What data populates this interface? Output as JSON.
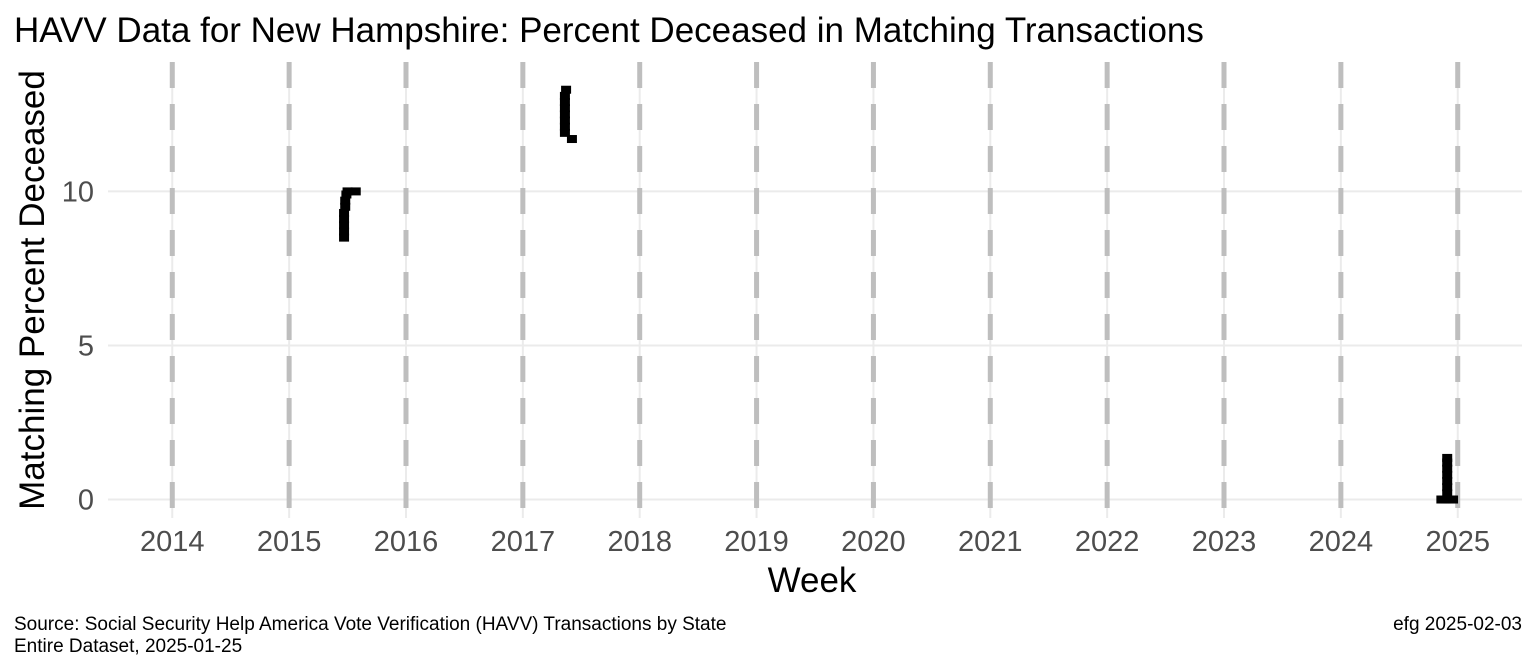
{
  "chart_data": {
    "type": "scatter",
    "title": "HAVV Data for New Hampshire:  Percent Deceased in Matching Transactions",
    "xlabel": "Week",
    "ylabel": "Matching Percent Deceased",
    "x_ticks": [
      "2014",
      "2015",
      "2016",
      "2017",
      "2018",
      "2019",
      "2020",
      "2021",
      "2022",
      "2023",
      "2024",
      "2025"
    ],
    "y_ticks": [
      0,
      5,
      10
    ],
    "xlim": [
      2013.45,
      2025.55
    ],
    "ylim": [
      -0.6,
      14.2
    ],
    "grid": true,
    "year_boundary_lines": "dashed",
    "series": [
      {
        "points": [
          {
            "x": 2015.47,
            "y": 8.5
          },
          {
            "x": 2015.47,
            "y": 8.7
          },
          {
            "x": 2015.47,
            "y": 8.9
          },
          {
            "x": 2015.47,
            "y": 9.1
          },
          {
            "x": 2015.47,
            "y": 9.3
          },
          {
            "x": 2015.48,
            "y": 9.5
          },
          {
            "x": 2015.48,
            "y": 9.7
          },
          {
            "x": 2015.49,
            "y": 9.9
          },
          {
            "x": 2015.5,
            "y": 10.0
          },
          {
            "x": 2015.57,
            "y": 10.0
          },
          {
            "x": 2017.36,
            "y": 11.9
          },
          {
            "x": 2017.36,
            "y": 12.1
          },
          {
            "x": 2017.36,
            "y": 12.3
          },
          {
            "x": 2017.36,
            "y": 12.5
          },
          {
            "x": 2017.36,
            "y": 12.7
          },
          {
            "x": 2017.36,
            "y": 12.9
          },
          {
            "x": 2017.36,
            "y": 13.1
          },
          {
            "x": 2017.37,
            "y": 13.3
          },
          {
            "x": 2017.42,
            "y": 11.7
          },
          {
            "x": 2024.86,
            "y": 0.0
          },
          {
            "x": 2024.88,
            "y": 0.0
          },
          {
            "x": 2024.9,
            "y": 0.0
          },
          {
            "x": 2024.92,
            "y": 0.0
          },
          {
            "x": 2024.94,
            "y": 0.0
          },
          {
            "x": 2024.96,
            "y": 0.0
          },
          {
            "x": 2024.91,
            "y": 0.2
          },
          {
            "x": 2024.91,
            "y": 0.4
          },
          {
            "x": 2024.91,
            "y": 0.6
          },
          {
            "x": 2024.91,
            "y": 0.8
          },
          {
            "x": 2024.91,
            "y": 1.0
          },
          {
            "x": 2024.91,
            "y": 1.2
          },
          {
            "x": 2024.91,
            "y": 1.35
          }
        ]
      }
    ]
  },
  "caption": {
    "source_line1": "Source:  Social Security Help America Vote Verification (HAVV) Transactions by State",
    "source_line2": "Entire Dataset, 2025-01-25",
    "credit": "efg 2025-02-03"
  },
  "colors": {
    "points": "#000000",
    "grid": "#ebebeb",
    "year_lines": "#bebebe",
    "tick_text": "#4d4d4d"
  }
}
